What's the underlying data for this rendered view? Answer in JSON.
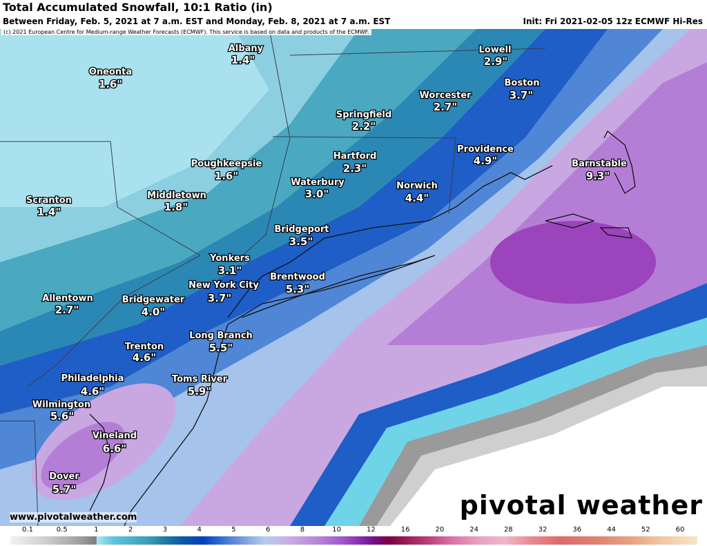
{
  "header": {
    "title": "Total Accumulated Snowfall, 10:1 Ratio (in)",
    "subtitle": "Between Friday, Feb. 5, 2021 at 7 a.m. EST and Monday, Feb. 8, 2021 at 7 a.m. EST",
    "init": "Init: Fri 2021-02-05 12z ECMWF Hi-Res",
    "copyright": "(c) 2021 European Centre for Medium-range Weather Forecasts (ECMWF). This service is based on data and products of the ECMWF."
  },
  "cities": [
    {
      "name": "Albany",
      "value": "1.4\""
    },
    {
      "name": "Oneonta",
      "value": "1.6\""
    },
    {
      "name": "Lowell",
      "value": "2.9\""
    },
    {
      "name": "Boston",
      "value": "3.7\""
    },
    {
      "name": "Worcester",
      "value": "2.7\""
    },
    {
      "name": "Springfield",
      "value": "2.2\""
    },
    {
      "name": "Providence",
      "value": "4.9\""
    },
    {
      "name": "Barnstable",
      "value": "9.3\""
    },
    {
      "name": "Hartford",
      "value": "2.3\""
    },
    {
      "name": "Poughkeepsie",
      "value": "1.6\""
    },
    {
      "name": "Waterbury",
      "value": "3.0\""
    },
    {
      "name": "Norwich",
      "value": "4.4\""
    },
    {
      "name": "Scranton",
      "value": "1.4\""
    },
    {
      "name": "Middletown",
      "value": "1.8\""
    },
    {
      "name": "Bridgeport",
      "value": "3.5\""
    },
    {
      "name": "Yonkers",
      "value": "3.1\""
    },
    {
      "name": "Brentwood",
      "value": "5.3\""
    },
    {
      "name": "New York City",
      "value": "3.7\""
    },
    {
      "name": "Allentown",
      "value": "2.7\""
    },
    {
      "name": "Bridgewater",
      "value": "4.0\""
    },
    {
      "name": "Long Branch",
      "value": "5.5\""
    },
    {
      "name": "Trenton",
      "value": "4.6\""
    },
    {
      "name": "Toms River",
      "value": "5.9\""
    },
    {
      "name": "Philadelphia",
      "value": "4.6\""
    },
    {
      "name": "Wilmington",
      "value": "5.6\""
    },
    {
      "name": "Vineland",
      "value": "6.6\""
    },
    {
      "name": "Dover",
      "value": "5.7\""
    }
  ],
  "footer": {
    "website": "www.pivotalweather.com",
    "logo": "pivotal weather"
  },
  "legend": {
    "ticks": [
      0.1,
      0.5,
      1,
      2,
      3,
      4,
      5,
      6,
      8,
      10,
      12,
      16,
      20,
      24,
      28,
      32,
      36,
      44,
      52,
      60
    ]
  }
}
